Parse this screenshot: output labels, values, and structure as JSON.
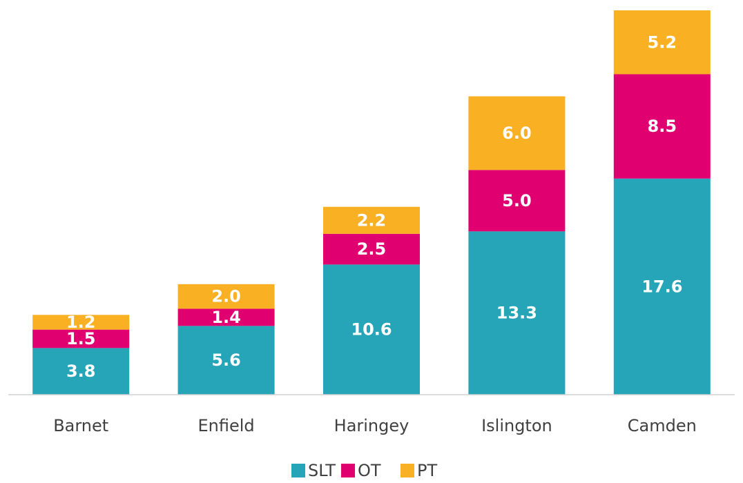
{
  "chart_data": {
    "type": "stacked_bar",
    "categories": [
      "Barnet",
      "Enfield",
      "Haringey",
      "Islington",
      "Camden"
    ],
    "series": [
      {
        "name": "SLT",
        "color": "#26a5b8",
        "values": [
          3.8,
          5.6,
          10.6,
          13.3,
          17.6
        ],
        "value_labels": [
          "3.8",
          "5.6",
          "10.6",
          "13.3",
          "17.6"
        ]
      },
      {
        "name": "OT",
        "color": "#e0006f",
        "values": [
          1.5,
          1.4,
          2.5,
          5.0,
          8.5
        ],
        "value_labels": [
          "1.5",
          "1.4",
          "2.5",
          "5.0",
          "8.5"
        ]
      },
      {
        "name": "PT",
        "color": "#f9b022",
        "values": [
          1.2,
          2.0,
          2.2,
          6.0,
          5.2
        ],
        "value_labels": [
          "1.2",
          "2.0",
          "2.2",
          "6.0",
          "5.2"
        ]
      }
    ]
  }
}
